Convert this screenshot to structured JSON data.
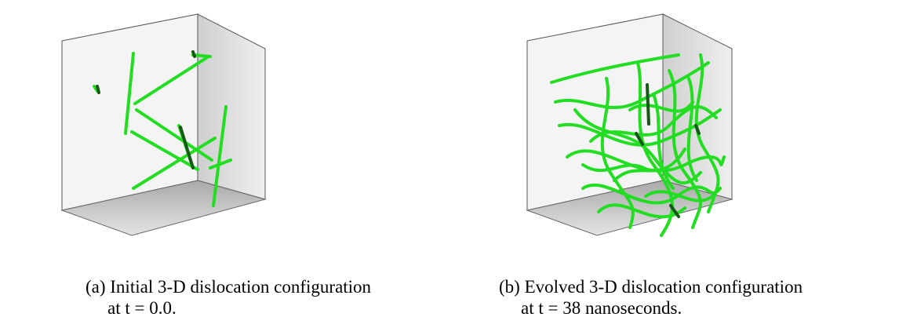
{
  "figure": {
    "panels": [
      {
        "id": "a",
        "caption_line1": "(a) Initial 3-D dislocation configuration",
        "caption_line2": "at t = 0.0.",
        "line_color": "#22dd22",
        "dark_line_color": "#145a14"
      },
      {
        "id": "b",
        "caption_line1": "(b) Evolved 3-D dislocation configuration",
        "caption_line2": "at t = 38 nanoseconds.",
        "line_color": "#22dd22",
        "dark_line_color": "#145a14"
      }
    ],
    "colors": {
      "back_wall": "#f1f1f1",
      "side_wall": "#dedede",
      "floor": "#b9b9b9",
      "edge": "#444444"
    }
  }
}
